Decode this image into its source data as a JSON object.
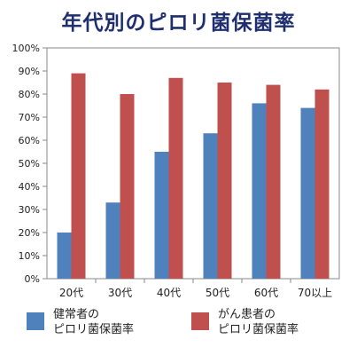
{
  "chart_data": {
    "type": "bar",
    "title": "年代別のピロリ菌保菌率",
    "categories": [
      "20代",
      "30代",
      "40代",
      "50代",
      "60代",
      "70以上"
    ],
    "series": [
      {
        "name_lines": [
          "健常者の",
          "ピロリ菌保菌率"
        ],
        "color": "#4f81bd",
        "values": [
          20,
          33,
          55,
          63,
          76,
          74
        ]
      },
      {
        "name_lines": [
          "がん患者の",
          "ピロリ菌保菌率"
        ],
        "color": "#c0504d",
        "values": [
          89,
          80,
          87,
          85,
          84,
          82
        ]
      }
    ],
    "ylim": [
      0,
      100
    ],
    "yticks": [
      "0%",
      "10%",
      "20%",
      "30%",
      "40%",
      "50%",
      "60%",
      "70%",
      "80%",
      "90%",
      "100%"
    ],
    "grid": false,
    "legend_position": "bottom"
  }
}
